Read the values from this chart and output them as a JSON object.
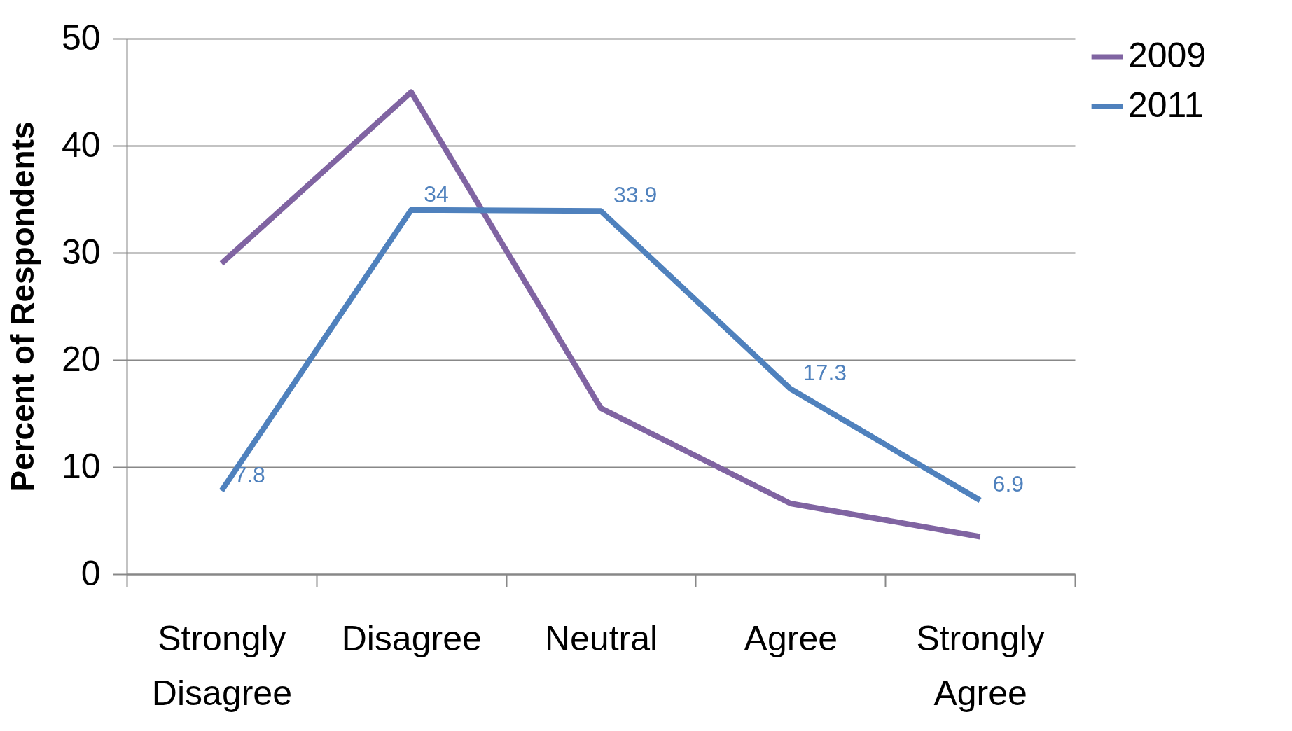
{
  "chart_data": {
    "type": "line",
    "ylabel": "Percent of Respondents",
    "categories": [
      "Strongly Disagree",
      "Disagree",
      "Neutral",
      "Agree",
      "Strongly Agree"
    ],
    "series": [
      {
        "name": "2009",
        "color": "#8064a2",
        "values": [
          29,
          45,
          15.5,
          6.6,
          3.5
        ]
      },
      {
        "name": "2011",
        "color": "#4f81bd",
        "values": [
          7.8,
          34,
          33.9,
          17.3,
          6.9
        ],
        "value_labels": [
          "7.8",
          "34",
          "33.9",
          "17.3",
          "6.9"
        ]
      }
    ],
    "ylim": [
      0,
      50
    ],
    "yticks": [
      0,
      10,
      20,
      30,
      40,
      50
    ],
    "grid": "y",
    "legend": "right",
    "marker": "none",
    "line_style": "solid"
  }
}
